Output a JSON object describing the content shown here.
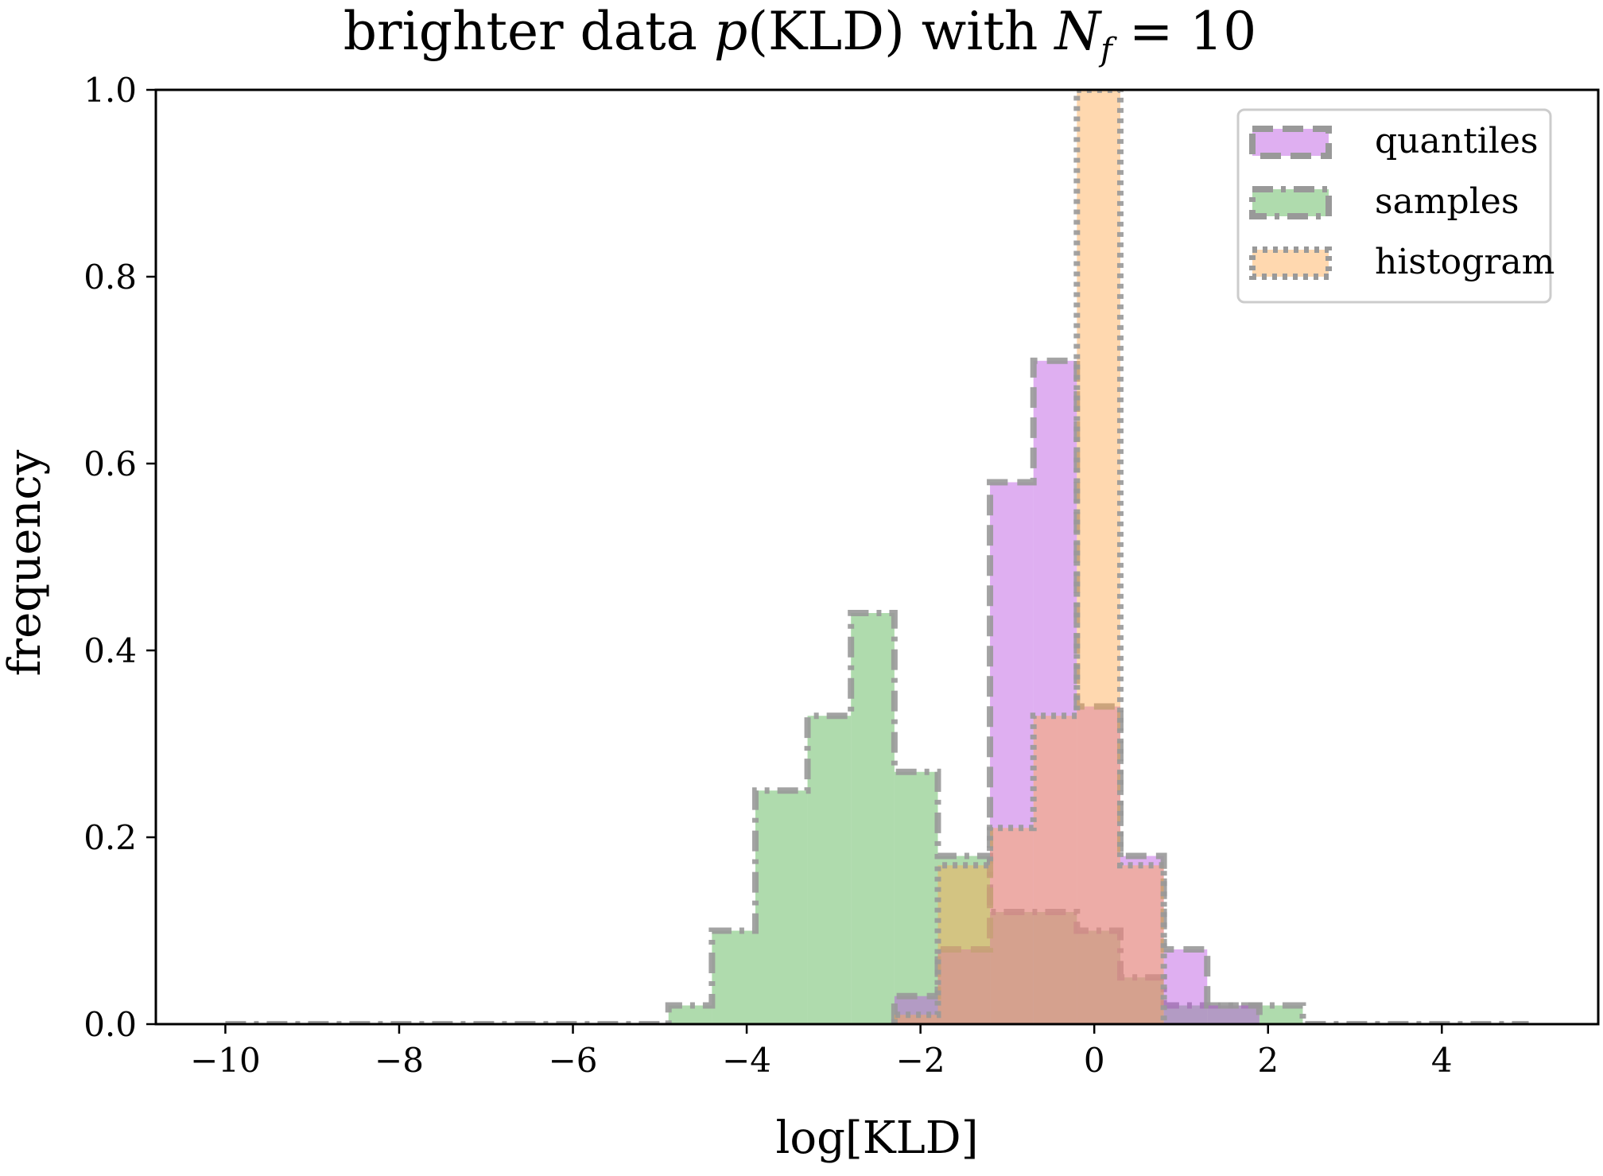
{
  "chart_data": {
    "type": "histogram",
    "title": "brighter data p(KLD) with N_f = 10",
    "title_parts": {
      "prefix": "brighter data ",
      "p": "p",
      "mid": "(KLD) with ",
      "N": "N",
      "sub": "f",
      "suffix": " = 10"
    },
    "xlabel": "log[KLD]",
    "ylabel": "frequency",
    "xlim": [
      -10.8,
      5.8
    ],
    "ylim": [
      0,
      1.0
    ],
    "xticks": [
      -10,
      -8,
      -6,
      -4,
      -2,
      0,
      2,
      4
    ],
    "xtick_labels": [
      "−10",
      "−8",
      "−6",
      "−4",
      "−2",
      "0",
      "2",
      "4"
    ],
    "yticks": [
      0.0,
      0.2,
      0.4,
      0.6,
      0.8,
      1.0
    ],
    "ytick_labels": [
      "0.0",
      "0.2",
      "0.4",
      "0.6",
      "0.8",
      "1.0"
    ],
    "grid": false,
    "legend_position": "top-right",
    "series": [
      {
        "name": "samples",
        "color": "#4daf4a",
        "alpha": 0.45,
        "edge_color": "#999999",
        "line_style": "dash-dot",
        "bin_edges": [
          -10.0,
          -4.9,
          -4.4,
          -3.9,
          -3.3,
          -2.8,
          -2.3,
          -1.8,
          -1.2,
          -0.7,
          -0.2,
          0.3,
          0.8,
          1.3,
          1.9,
          2.4,
          5.0
        ],
        "values": [
          0.0,
          0.02,
          0.1,
          0.25,
          0.33,
          0.44,
          0.27,
          0.18,
          0.12,
          0.12,
          0.1,
          0.05,
          0.02,
          0.02,
          0.02,
          0.0
        ]
      },
      {
        "name": "quantiles",
        "color": "#b84ee0",
        "alpha": 0.45,
        "edge_color": "#999999",
        "line_style": "dashed",
        "bin_edges": [
          -2.3,
          -1.8,
          -1.2,
          -0.7,
          -0.2,
          0.3,
          0.8,
          1.3,
          1.9
        ],
        "values": [
          0.03,
          0.08,
          0.58,
          0.71,
          0.34,
          0.18,
          0.08,
          0.02
        ]
      },
      {
        "name": "histogram",
        "color": "#ffa94d",
        "alpha": 0.45,
        "edge_color": "#999999",
        "line_style": "dotted",
        "bin_edges": [
          -2.3,
          -1.8,
          -1.2,
          -0.7,
          -0.2,
          0.3,
          0.8
        ],
        "values": [
          0.01,
          0.17,
          0.21,
          0.33,
          1.0,
          0.17
        ]
      }
    ],
    "plot_order": [
      "samples",
      "quantiles",
      "histogram"
    ],
    "legend_order": [
      "quantiles",
      "samples",
      "histogram"
    ]
  }
}
